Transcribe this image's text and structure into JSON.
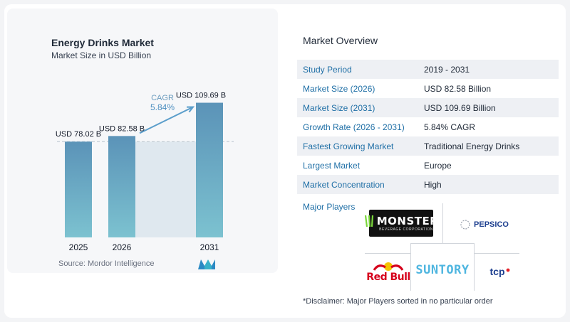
{
  "chart_data": {
    "type": "bar",
    "title": "Energy Drinks Market",
    "subtitle": "Market Size in USD Billion",
    "categories": [
      "2025",
      "2026",
      "2031"
    ],
    "values": [
      78.02,
      82.58,
      109.69
    ],
    "data_labels": [
      "USD 78.02 B",
      "USD 82.58 B",
      "USD 109.69 B"
    ],
    "cagr_label": "CAGR",
    "cagr_value": "5.84%",
    "ylim": [
      0,
      110
    ],
    "grid": false,
    "legend": "none",
    "colors": {
      "bar_top": "#5b93b8",
      "bar_bottom": "#7cc2d0",
      "band": "#dfe8ef",
      "arrow": "#5b9ecb",
      "dashed": "#b8c2cc"
    }
  },
  "source": "Source:  Mordor Intelligence",
  "overview": {
    "title": "Market Overview",
    "rows": [
      {
        "key": "Study Period",
        "value": "2019 - 2031"
      },
      {
        "key": "Market Size (2026)",
        "value": "USD 82.58 Billion"
      },
      {
        "key": "Market Size (2031)",
        "value": "USD 109.69 Billion"
      },
      {
        "key": "Growth Rate (2026 - 2031)",
        "value": "5.84% CAGR"
      },
      {
        "key": "Fastest Growing Market",
        "value": "Traditional Energy Drinks"
      },
      {
        "key": "Largest Market",
        "value": "Europe"
      },
      {
        "key": "Market Concentration",
        "value": "High"
      }
    ]
  },
  "players": {
    "label": "Major Players",
    "logos": [
      {
        "text": "MONSTER",
        "sub": "BEVERAGE CORPORATION",
        "icon": "monster-claw-icon"
      },
      {
        "text": "PEPSICO",
        "icon": "pepsico-globe-icon"
      },
      {
        "text": "Red Bull",
        "icon": "red-bull-icon"
      },
      {
        "text": "SUNTORY"
      },
      {
        "text": "tcp",
        "icon": "tcp-swirl-icon"
      }
    ]
  },
  "disclaimer": "*Disclaimer: Major Players sorted in no particular order"
}
